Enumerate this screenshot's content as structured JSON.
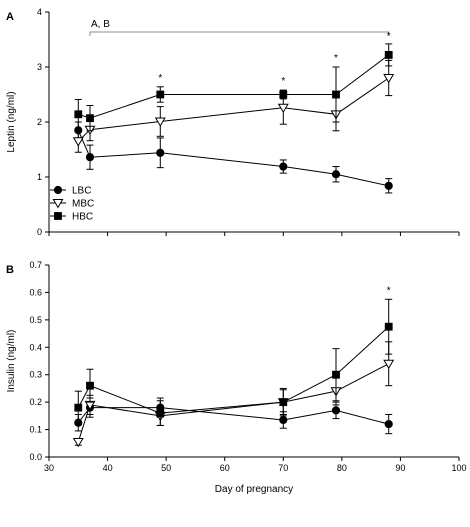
{
  "chart_data": [
    {
      "panel_label": "A",
      "type": "line",
      "xlabel": "",
      "ylabel": "Leptin (ng/ml)",
      "xlim": [
        30,
        100
      ],
      "ylim": [
        0,
        4
      ],
      "y_ticks": [
        "0",
        "1",
        "2",
        "3",
        "4"
      ],
      "x_ticks": [],
      "grid": false,
      "legend_placement": "bottom-left",
      "series": [
        {
          "name": "LBC",
          "marker": "circle-filled",
          "x": [
            35,
            37,
            49,
            70,
            79,
            88
          ],
          "y": [
            1.85,
            1.36,
            1.44,
            1.19,
            1.05,
            0.84
          ],
          "err": [
            0.15,
            0.22,
            0.27,
            0.12,
            0.14,
            0.13
          ]
        },
        {
          "name": "MBC",
          "marker": "triangle-down-open",
          "x": [
            35,
            37,
            49,
            70,
            79,
            88
          ],
          "y": [
            1.65,
            1.86,
            2.01,
            2.26,
            2.14,
            2.8
          ],
          "err": [
            0.2,
            0.2,
            0.27,
            0.3,
            0.3,
            0.32
          ]
        },
        {
          "name": "HBC",
          "marker": "square-filled",
          "x": [
            35,
            37,
            49,
            70,
            79,
            88
          ],
          "y": [
            2.14,
            2.07,
            2.5,
            2.5,
            2.5,
            3.22
          ],
          "err": [
            0.27,
            0.23,
            0.14,
            0.08,
            0.5,
            0.2
          ]
        }
      ],
      "annotations": {
        "bracket_label": "A, B",
        "bracket_x": [
          37,
          88
        ],
        "asterisks": [
          {
            "x": 49,
            "text": "*"
          },
          {
            "x": 70,
            "text": "*"
          },
          {
            "x": 79,
            "text": "*"
          },
          {
            "x": 88,
            "text": "*"
          }
        ]
      }
    },
    {
      "panel_label": "B",
      "type": "line",
      "xlabel": "Day of pregnancy",
      "ylabel": "Insulin (ng/ml)",
      "xlim": [
        30,
        100
      ],
      "ylim": [
        0,
        0.7
      ],
      "y_ticks": [
        "0.0",
        "0.1",
        "0.2",
        "0.3",
        "0.4",
        "0.5",
        "0.6",
        "0.7"
      ],
      "x_ticks": [
        "30",
        "40",
        "50",
        "60",
        "70",
        "80",
        "90",
        "100"
      ],
      "grid": false,
      "series": [
        {
          "name": "LBC",
          "marker": "circle-filled",
          "x": [
            35,
            37,
            49,
            70,
            79,
            88
          ],
          "y": [
            0.125,
            0.18,
            0.18,
            0.135,
            0.17,
            0.12
          ],
          "err": [
            0.03,
            0.035,
            0.035,
            0.03,
            0.03,
            0.035
          ]
        },
        {
          "name": "MBC",
          "marker": "triangle-down-open",
          "x": [
            35,
            37,
            49,
            70,
            79,
            88
          ],
          "y": [
            0.055,
            0.19,
            0.15,
            0.2,
            0.24,
            0.34
          ],
          "err": [
            0.012,
            0.035,
            0.035,
            0.045,
            0.05,
            0.08
          ]
        },
        {
          "name": "HBC",
          "marker": "square-filled",
          "x": [
            35,
            37,
            49,
            70,
            79,
            88
          ],
          "y": [
            0.18,
            0.26,
            0.16,
            0.2,
            0.3,
            0.475
          ],
          "err": [
            0.06,
            0.06,
            0.045,
            0.05,
            0.095,
            0.1
          ]
        }
      ],
      "annotations": {
        "asterisks": [
          {
            "x": 88,
            "text": "*"
          }
        ]
      }
    }
  ],
  "colors": {
    "ink": "#000000",
    "background": "#ffffff",
    "bracket": "#8c8c8c"
  }
}
